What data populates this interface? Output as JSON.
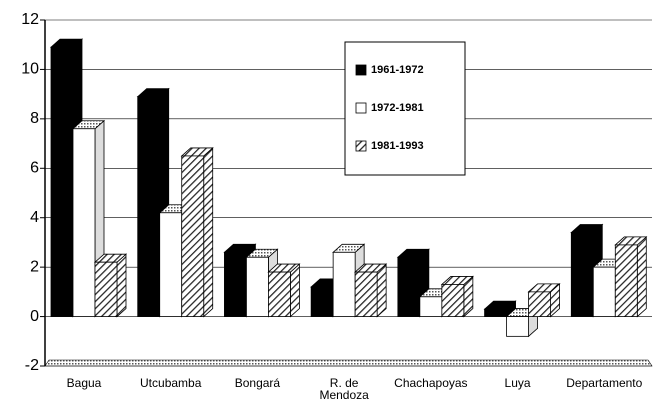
{
  "chart_data": {
    "type": "bar3d",
    "categories": [
      "Bagua",
      "Utcubamba",
      "Bongará",
      "R. de\nMendoza",
      "Chachapoyas",
      "Luya",
      "Departamento"
    ],
    "series": [
      {
        "name": "1961-1972",
        "color": "#000000",
        "values": [
          10.9,
          8.9,
          2.6,
          1.2,
          2.4,
          0.3,
          3.4
        ]
      },
      {
        "name": "1972-1981",
        "color": "#ffffff",
        "values": [
          7.6,
          4.2,
          2.4,
          2.6,
          0.8,
          -0.8,
          2.0
        ]
      },
      {
        "name": "1981-1993",
        "color": "#222222",
        "hatch": true,
        "values": [
          2.2,
          6.5,
          1.8,
          1.8,
          1.3,
          1.0,
          2.9
        ]
      }
    ],
    "ylim": [
      -2,
      12
    ],
    "yticks": [
      -2,
      0,
      2,
      4,
      6,
      8,
      10,
      12
    ],
    "grid": true
  }
}
